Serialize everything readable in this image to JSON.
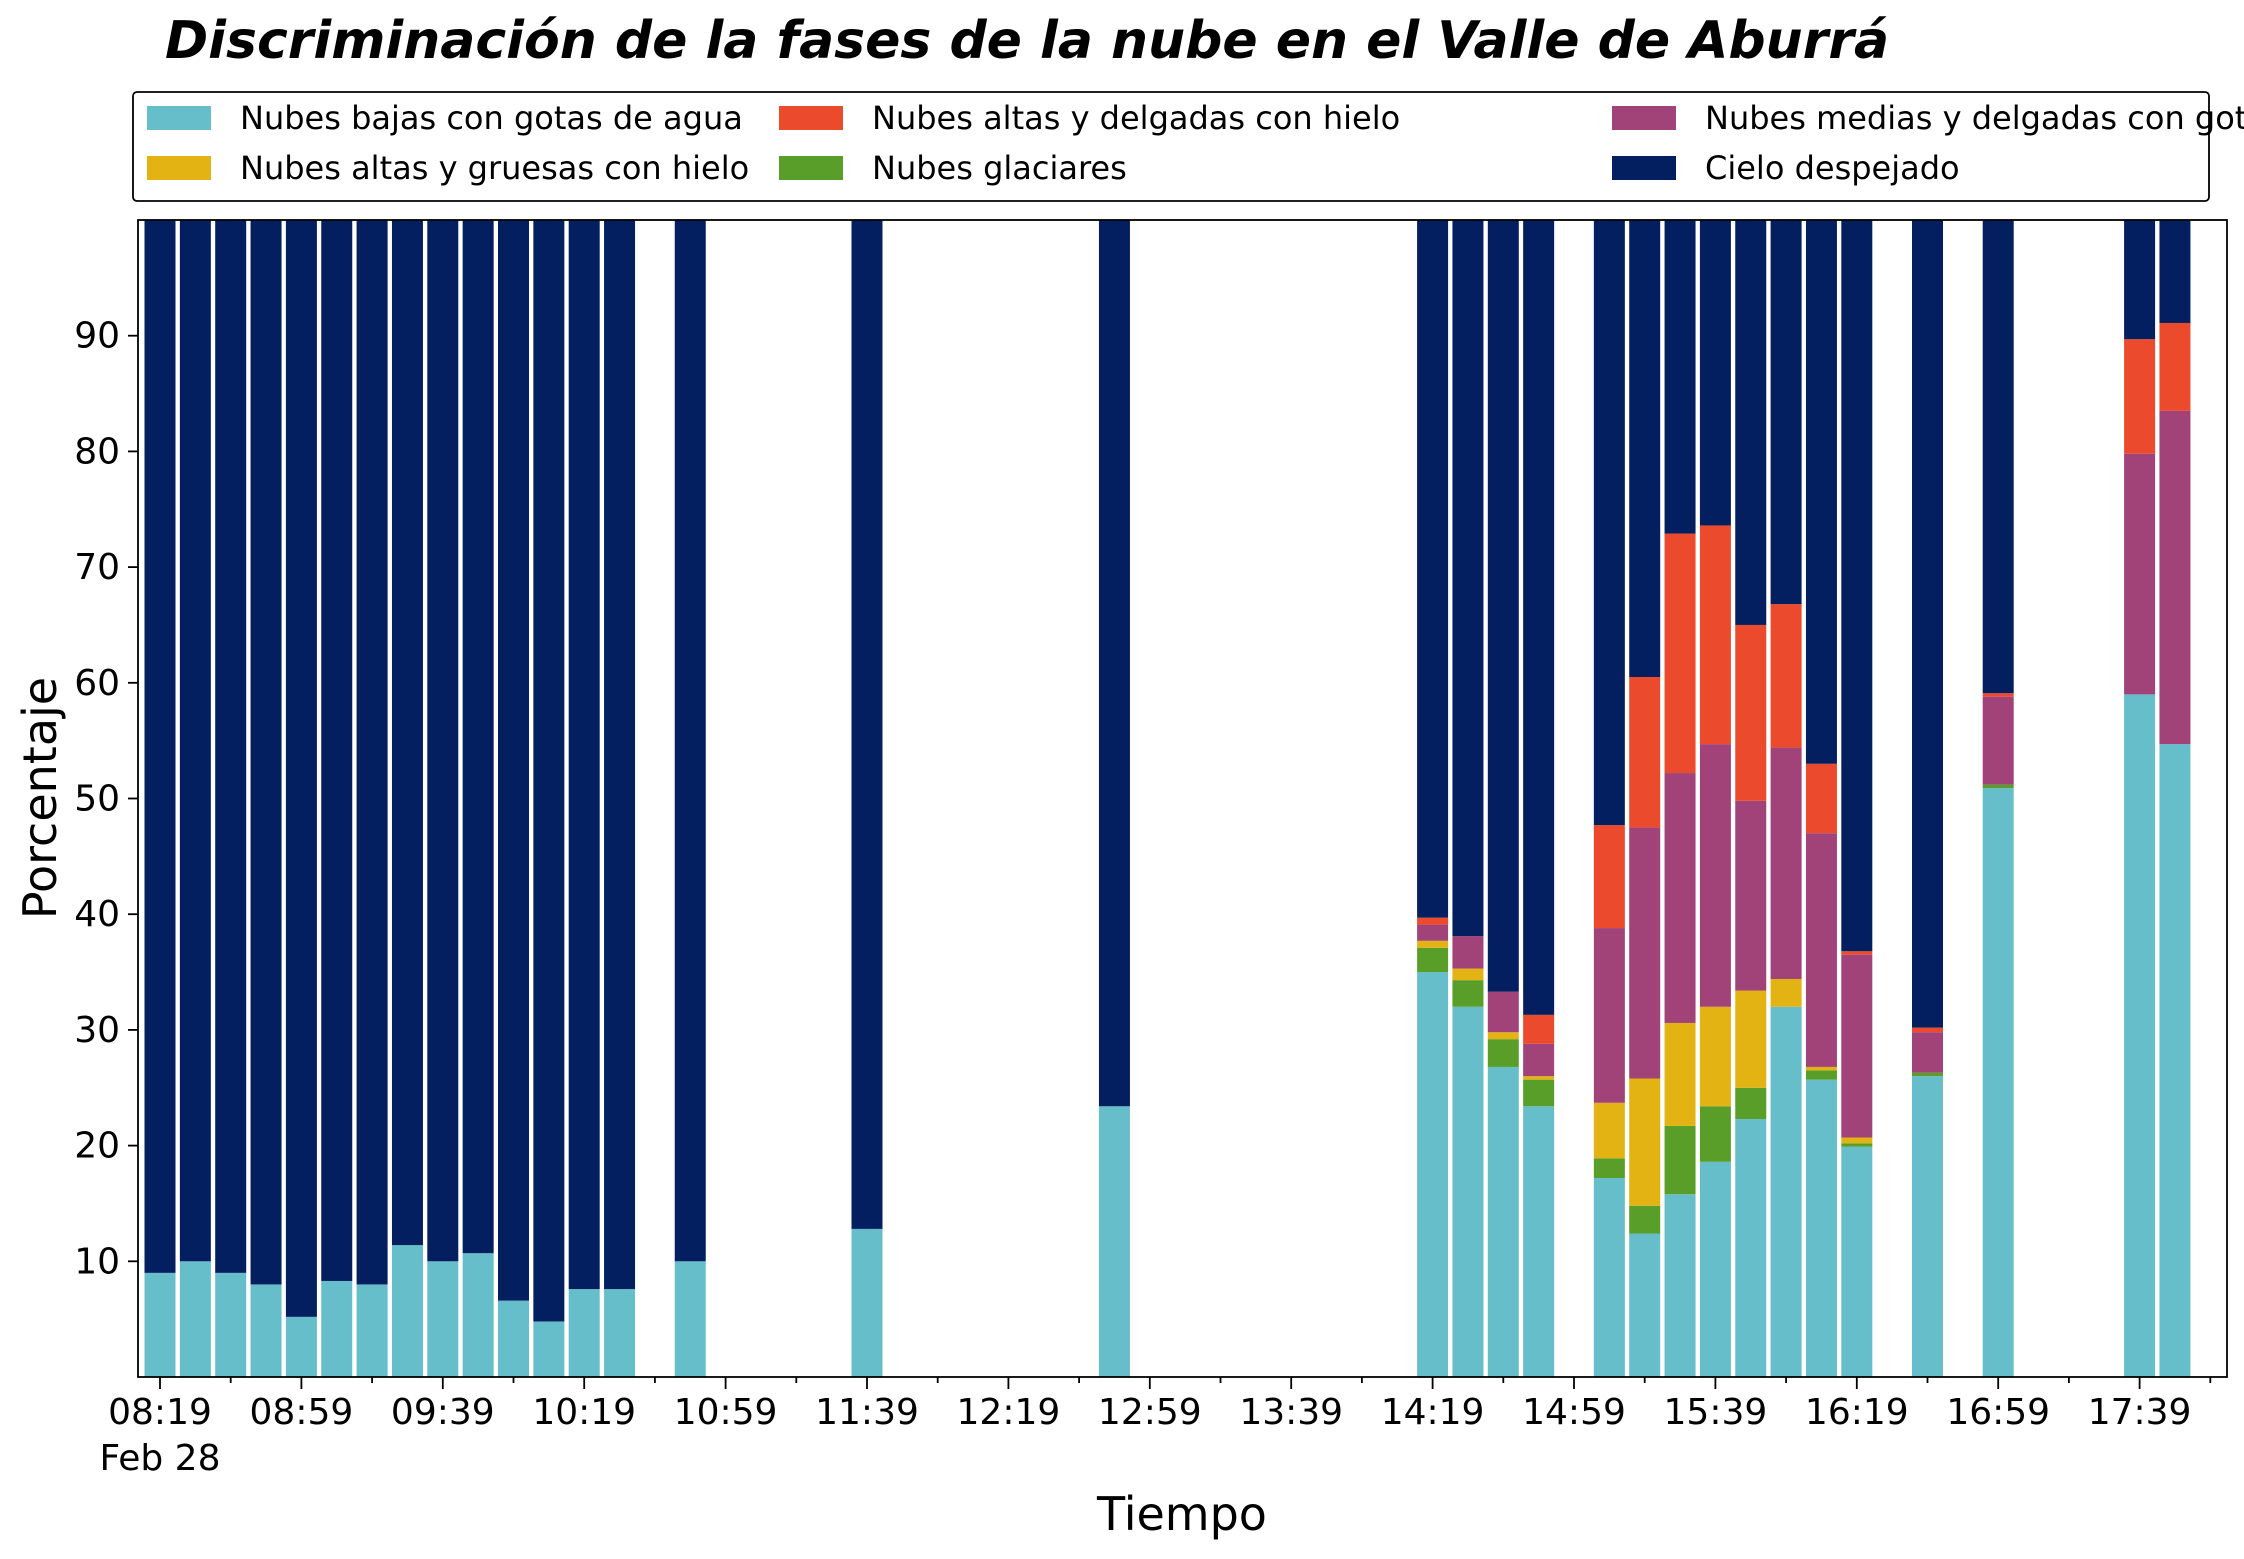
{
  "chart_data": {
    "type": "bar",
    "stacked": true,
    "title": "Discriminación de la fases de la nube en el Valle de Aburrá",
    "xlabel": "Tiempo",
    "ylabel": "Porcentaje",
    "ylim": [
      0,
      100
    ],
    "yticks": [
      10,
      20,
      30,
      40,
      50,
      60,
      70,
      80,
      90
    ],
    "grid": false,
    "legend_position": "top",
    "x_major_ticks": [
      {
        "time": "08:19",
        "sub": "Feb 28"
      },
      {
        "time": "08:59",
        "sub": ""
      },
      {
        "time": "09:39",
        "sub": ""
      },
      {
        "time": "10:19",
        "sub": ""
      },
      {
        "time": "10:59",
        "sub": ""
      },
      {
        "time": "11:39",
        "sub": ""
      },
      {
        "time": "12:19",
        "sub": ""
      },
      {
        "time": "12:59",
        "sub": ""
      },
      {
        "time": "13:39",
        "sub": ""
      },
      {
        "time": "14:19",
        "sub": ""
      },
      {
        "time": "14:59",
        "sub": ""
      },
      {
        "time": "15:39",
        "sub": ""
      },
      {
        "time": "16:19",
        "sub": ""
      },
      {
        "time": "16:59",
        "sub": ""
      },
      {
        "time": "17:39",
        "sub": ""
      }
    ],
    "series": [
      {
        "name": "Nubes bajas con gotas de agua",
        "color": "#65bec9"
      },
      {
        "name": "Nubes glaciares",
        "color": "#5a9e2a"
      },
      {
        "name": "Nubes altas y gruesas con hielo",
        "color": "#e3b314"
      },
      {
        "name": "Nubes medias y delgadas con gotas de agua",
        "color": "#a14278"
      },
      {
        "name": "Nubes altas y delgadas con hielo",
        "color": "#ec4a2c"
      },
      {
        "name": "Cielo despejado",
        "color": "#041f5f"
      }
    ],
    "legend_order": [
      0,
      2,
      4,
      1,
      3,
      5
    ],
    "bars": [
      {
        "time": "08:19",
        "values": [
          9,
          0,
          0,
          0,
          0,
          91
        ]
      },
      {
        "time": "08:29",
        "values": [
          10,
          0,
          0,
          0,
          0,
          90
        ]
      },
      {
        "time": "08:39",
        "values": [
          9,
          0,
          0,
          0,
          0,
          91
        ]
      },
      {
        "time": "08:49",
        "values": [
          8,
          0,
          0,
          0,
          0,
          92
        ]
      },
      {
        "time": "08:59",
        "values": [
          5.2,
          0,
          0,
          0,
          0,
          94.8
        ]
      },
      {
        "time": "09:09",
        "values": [
          8.3,
          0,
          0,
          0,
          0,
          91.7
        ]
      },
      {
        "time": "09:19",
        "values": [
          8,
          0,
          0,
          0,
          0,
          92
        ]
      },
      {
        "time": "09:29",
        "values": [
          11.4,
          0,
          0,
          0,
          0,
          88.6
        ]
      },
      {
        "time": "09:39",
        "values": [
          10,
          0,
          0,
          0,
          0,
          90
        ]
      },
      {
        "time": "09:49",
        "values": [
          10.7,
          0,
          0,
          0,
          0,
          89.3
        ]
      },
      {
        "time": "09:59",
        "values": [
          6.6,
          0,
          0,
          0,
          0,
          93.4
        ]
      },
      {
        "time": "10:09",
        "values": [
          4.8,
          0,
          0,
          0,
          0,
          95.2
        ]
      },
      {
        "time": "10:19",
        "values": [
          7.6,
          0,
          0,
          0,
          0,
          92.4
        ]
      },
      {
        "time": "10:29",
        "values": [
          7.6,
          0,
          0,
          0,
          0,
          92.4
        ]
      },
      {
        "time": "10:49",
        "values": [
          10,
          0,
          0,
          0,
          0,
          90
        ]
      },
      {
        "time": "11:39",
        "values": [
          12.8,
          0,
          0,
          0,
          0,
          87.2
        ]
      },
      {
        "time": "12:49",
        "values": [
          23.4,
          0,
          0,
          0,
          0,
          76.6
        ]
      },
      {
        "time": "14:19",
        "values": [
          35,
          2.1,
          0.6,
          1.4,
          0.6,
          60.3
        ]
      },
      {
        "time": "14:29",
        "values": [
          32,
          2.3,
          1,
          2.8,
          0,
          61.9
        ]
      },
      {
        "time": "14:39",
        "values": [
          26.8,
          2.4,
          0.6,
          3.5,
          0,
          66.7
        ]
      },
      {
        "time": "14:49",
        "values": [
          23.4,
          2.3,
          0.3,
          2.8,
          2.5,
          68.7
        ]
      },
      {
        "time": "15:09",
        "values": [
          17.2,
          1.7,
          4.8,
          15.1,
          8.9,
          52.3
        ]
      },
      {
        "time": "15:19",
        "values": [
          12.4,
          2.4,
          11,
          21.7,
          13,
          39.5
        ]
      },
      {
        "time": "15:29",
        "values": [
          15.8,
          5.9,
          8.9,
          21.6,
          20.7,
          27.1
        ]
      },
      {
        "time": "15:39",
        "values": [
          18.6,
          4.8,
          8.6,
          22.7,
          18.9,
          26.4
        ]
      },
      {
        "time": "15:49",
        "values": [
          22.3,
          2.7,
          8.4,
          16.4,
          15.2,
          35
        ]
      },
      {
        "time": "15:59",
        "values": [
          32,
          0,
          2.4,
          20,
          12.4,
          33.2
        ]
      },
      {
        "time": "16:09",
        "values": [
          25.7,
          0.8,
          0.3,
          20.2,
          6,
          47
        ]
      },
      {
        "time": "16:19",
        "values": [
          19.9,
          0.3,
          0.5,
          15.8,
          0.3,
          63.2
        ]
      },
      {
        "time": "16:39",
        "values": [
          26,
          0.3,
          0,
          3.5,
          0.4,
          69.8
        ]
      },
      {
        "time": "16:59",
        "values": [
          50.9,
          0.3,
          0,
          7.6,
          0.3,
          40.9
        ]
      },
      {
        "time": "17:39",
        "values": [
          59,
          0,
          0,
          20.8,
          9.9,
          10.3
        ]
      },
      {
        "time": "17:49",
        "values": [
          54.7,
          0,
          0,
          28.8,
          7.6,
          8.9
        ]
      }
    ]
  }
}
